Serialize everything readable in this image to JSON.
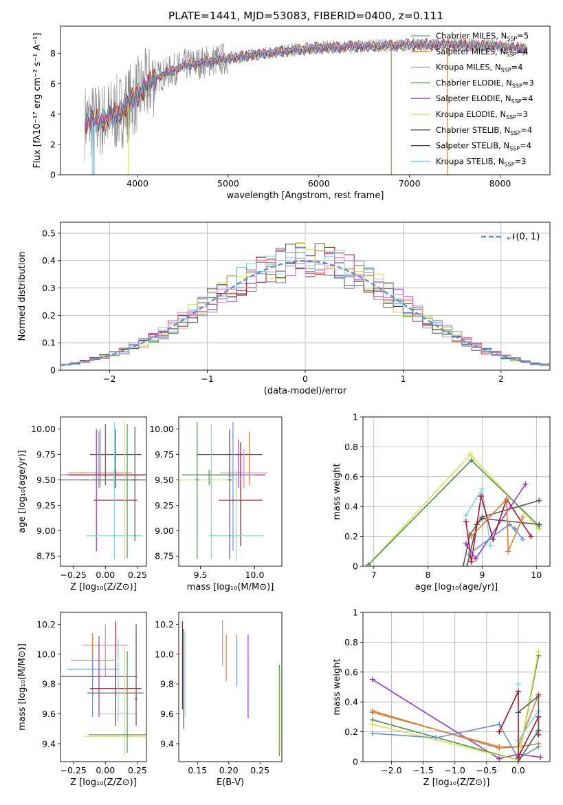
{
  "figure_title": "PLATE=1441, MJD=53083, FIBERID=0400, z=0.111",
  "colors": {
    "Chabrier MILES": "#6a8fd8",
    "Salpeter MILES": "#e8782a",
    "Kroupa MILES": "#c8883a",
    "Chabrier ELODIE": "#4f8f4f",
    "Salpeter ELODIE": "#9932cc",
    "Kroupa ELODIE": "#d4e84a",
    "Chabrier STELIB": "#555555",
    "Salpeter STELIB": "#b01020",
    "Kroupa STELIB": "#7fd8e0",
    "extra_pink": "#f080b0",
    "data": "#808080",
    "normal": "#5b8fd0"
  },
  "chart_data": [
    {
      "id": "spectrum",
      "type": "line",
      "title": "PLATE=1441, MJD=53083, FIBERID=0400, z=0.111",
      "xlabel": "wavelength [Angstrom, rest frame]",
      "ylabel": "Flux [fλ10⁻¹⁷ erg cm⁻² s⁻¹ A⁻¹]",
      "xlim": [
        3150,
        8550
      ],
      "ylim": [
        0,
        9.8
      ],
      "xticks": [
        4000,
        5000,
        6000,
        7000,
        8000
      ],
      "yticks": [
        0,
        2,
        4,
        6,
        8
      ],
      "legend": [
        {
          "name": "Chabrier MILES, N",
          "sub": "SSP",
          "tail": "=5",
          "color_key": "Chabrier MILES"
        },
        {
          "name": "Salpeter MILES, N",
          "sub": "SSP",
          "tail": "=4",
          "color_key": "Salpeter MILES"
        },
        {
          "name": "Kroupa MILES, N",
          "sub": "SSP",
          "tail": "=4",
          "color_key": "Kroupa MILES"
        },
        {
          "name": "Chabrier ELODIE, N",
          "sub": "SSP",
          "tail": "=3",
          "color_key": "Chabrier ELODIE"
        },
        {
          "name": "Salpeter ELODIE, N",
          "sub": "SSP",
          "tail": "=4",
          "color_key": "Salpeter ELODIE"
        },
        {
          "name": "Kroupa ELODIE, N",
          "sub": "SSP",
          "tail": "=3",
          "color_key": "Kroupa ELODIE"
        },
        {
          "name": "Chabrier STELIB, N",
          "sub": "SSP",
          "tail": "=4",
          "color_key": "Chabrier STELIB"
        },
        {
          "name": "Salpeter STELIB, N",
          "sub": "SSP",
          "tail": "=4",
          "color_key": "Salpeter STELIB"
        },
        {
          "name": "Kroupa STELIB, N",
          "sub": "SSP",
          "tail": "=3",
          "color_key": "Kroupa STELIB"
        }
      ],
      "legend_position": "upper-right",
      "continuum": {
        "x": [
          3420,
          3600,
          3800,
          4000,
          4200,
          4500,
          5000,
          5500,
          6000,
          6500,
          7000,
          7500,
          8000,
          8300
        ],
        "y": [
          3.5,
          3.6,
          4.1,
          5.3,
          6.4,
          7.2,
          7.7,
          8.1,
          8.4,
          8.5,
          8.6,
          8.6,
          8.5,
          8.3
        ]
      },
      "model_lower_cutoff": [
        3500,
        3520,
        3900,
        6800,
        7420
      ]
    },
    {
      "id": "residuals",
      "type": "step",
      "xlabel": "(data-model)/error",
      "ylabel": "Normed distribution",
      "xlim": [
        -2.5,
        2.5
      ],
      "ylim": [
        0,
        0.54
      ],
      "xticks": [
        -2,
        -1,
        0,
        1,
        2
      ],
      "yticks": [
        0,
        0.1,
        0.2,
        0.3,
        0.4,
        0.5
      ],
      "grid": true,
      "legend_label": "𝒩(0, 1)",
      "legend_position": "upper-right",
      "bin_width": 0.1
    },
    {
      "id": "age_vs_Z",
      "type": "errorbar",
      "xlabel": "Z [log₁₀(Z/Z⊙)]",
      "ylabel": "age  [log₁₀(age/yr)]",
      "xlim": [
        -0.35,
        0.32
      ],
      "ylim": [
        8.65,
        10.12
      ],
      "xticks": [
        -0.25,
        0,
        0.25
      ],
      "xticklabels": [
        "−0.25",
        "0.00",
        "0.25"
      ],
      "yticks": [
        8.75,
        9.0,
        9.25,
        9.5,
        9.75,
        10.0
      ],
      "yticklabels": [
        "8.75",
        "9.00",
        "9.25",
        "9.50",
        "9.75",
        "10.00"
      ],
      "points": [
        {
          "x": 0.08,
          "y": 9.75,
          "xerr": 0.2,
          "yerr": [
            9.52,
            10.0
          ],
          "c": "Chabrier STELIB"
        },
        {
          "x": -0.04,
          "y": 9.57,
          "xerr": 0.25,
          "yerr": [
            9.43,
            10.0
          ],
          "c": "Salpeter MILES"
        },
        {
          "x": -0.05,
          "y": 9.55,
          "xerr": 0.3,
          "yerr": [
            9.42,
            9.98
          ],
          "c": "Chabrier MILES"
        },
        {
          "x": 0.0,
          "y": 9.55,
          "xerr": 0.3,
          "yerr": [
            9.45,
            10.05
          ],
          "c": "Salpeter ELODIE"
        },
        {
          "x": 0.07,
          "y": 9.55,
          "xerr": 0.35,
          "yerr": [
            9.42,
            9.6
          ],
          "c": "Salpeter STELIB"
        },
        {
          "x": 0.08,
          "y": 9.3,
          "xerr": 0.17,
          "yerr": [
            9.42,
            9.6
          ],
          "c": "Salpeter STELIB"
        },
        {
          "x": 0.08,
          "y": 9.5,
          "xerr": 0.25,
          "yerr": [
            9.45,
            9.55
          ],
          "c": "Chabrier STELIB"
        },
        {
          "x": -0.07,
          "y": 9.5,
          "xerr": 0.28,
          "yerr": [
            8.8,
            10.0
          ],
          "c": "Salpeter ELODIE"
        },
        {
          "x": 0.15,
          "y": 9.5,
          "xerr": 0.28,
          "yerr": [
            8.72,
            10.07
          ],
          "c": "Kroupa ELODIE"
        },
        {
          "x": 0.17,
          "y": 9.5,
          "xerr": 0.28,
          "yerr": [
            8.73,
            10.05
          ],
          "c": "Chabrier ELODIE"
        },
        {
          "x": 0.07,
          "y": 8.95,
          "xerr": 0.22,
          "yerr": [
            8.72,
            10.07
          ],
          "c": "Kroupa STELIB"
        },
        {
          "x": 0.23,
          "y": 9.5,
          "xerr": 0.02,
          "yerr": [
            8.9,
            10.02
          ],
          "c": "Chabrier STELIB"
        }
      ]
    },
    {
      "id": "age_vs_mass",
      "type": "errorbar",
      "xlabel": "mass [log₁₀(M/M⊙)]",
      "ylabel": "",
      "xlim": [
        9.3,
        10.25
      ],
      "ylim": [
        8.65,
        10.12
      ],
      "xticks": [
        9.5,
        10.0
      ],
      "xticklabels": [
        "9.5",
        "10.0"
      ],
      "yticks": [
        8.75,
        9.0,
        9.25,
        9.5,
        9.75,
        10.0
      ],
      "yticklabels": [
        "8.75",
        "9.00",
        "9.25",
        "9.50",
        "9.75",
        "10.00"
      ],
      "points": [
        {
          "x": 9.77,
          "y": 9.75,
          "xerr": 0.3,
          "yerr": [
            9.52,
            9.98
          ],
          "c": "Chabrier STELIB"
        },
        {
          "x": 9.9,
          "y": 9.57,
          "xerr": 0.22,
          "yerr": [
            9.42,
            9.8
          ],
          "c": "extra_pink"
        },
        {
          "x": 9.95,
          "y": 9.55,
          "xerr": 0.12,
          "yerr": [
            9.45,
            9.97
          ],
          "c": "Salpeter MILES"
        },
        {
          "x": 9.85,
          "y": 9.55,
          "xerr": 0.25,
          "yerr": [
            9.42,
            9.9
          ],
          "c": "Salpeter ELODIE"
        },
        {
          "x": 9.8,
          "y": 9.55,
          "xerr": 0.2,
          "yerr": [
            8.8,
            10.07
          ],
          "c": "Chabrier MILES"
        },
        {
          "x": 9.87,
          "y": 9.3,
          "xerr": 0.2,
          "yerr": [
            8.85,
            9.87
          ],
          "c": "Salpeter STELIB"
        },
        {
          "x": 9.6,
          "y": 9.5,
          "xerr": 0.3,
          "yerr": [
            9.45,
            9.6
          ],
          "c": "Kroupa ELODIE"
        },
        {
          "x": 9.58,
          "y": 9.55,
          "xerr": 0.25,
          "yerr": [
            9.45,
            9.6
          ],
          "c": "Chabrier ELODIE"
        },
        {
          "x": 9.47,
          "y": 9.5,
          "xerr": 0.02,
          "yerr": [
            8.72,
            10.07
          ],
          "c": "Chabrier ELODIE"
        },
        {
          "x": 9.6,
          "y": 9.5,
          "xerr": 0.02,
          "yerr": [
            8.72,
            10.05
          ],
          "c": "Kroupa STELIB"
        },
        {
          "x": 9.83,
          "y": 8.95,
          "xerr": 0.25,
          "yerr": [
            8.7,
            9.6
          ],
          "c": "Kroupa STELIB"
        },
        {
          "x": 9.77,
          "y": 9.5,
          "xerr": 0.02,
          "yerr": [
            8.72,
            10.0
          ],
          "c": "Chabrier STELIB"
        }
      ]
    },
    {
      "id": "massweight_vs_age",
      "type": "line",
      "xlabel": "age  [log₁₀(age/yr)]",
      "ylabel": "mass weight",
      "xlim": [
        6.8,
        10.25
      ],
      "ylim": [
        0,
        1.0
      ],
      "xticks": [
        7,
        8,
        9,
        10
      ],
      "yticks": [
        0,
        0.2,
        0.4,
        0.6,
        0.8,
        1.0
      ],
      "grid": true,
      "series": [
        {
          "c": "Kroupa ELODIE",
          "x": [
            6.9,
            8.78,
            10.05
          ],
          "y": [
            0.01,
            0.75,
            0.25
          ]
        },
        {
          "c": "Chabrier ELODIE",
          "x": [
            6.9,
            8.8,
            10.05
          ],
          "y": [
            0.01,
            0.71,
            0.27
          ]
        },
        {
          "c": "Chabrier STELIB",
          "x": [
            8.65,
            8.77,
            9.0,
            10.05
          ],
          "y": [
            0.0,
            0.21,
            0.33,
            0.44
          ]
        },
        {
          "c": "Chabrier STELIB",
          "x": [
            8.72,
            8.9,
            9.0,
            10.05
          ],
          "y": [
            0.0,
            0.28,
            0.32,
            0.28
          ]
        },
        {
          "c": "Salpeter ELODIE",
          "x": [
            8.7,
            8.88,
            9.8
          ],
          "y": [
            0.15,
            0.05,
            0.55
          ]
        },
        {
          "c": "Kroupa STELIB",
          "x": [
            8.7,
            9.0,
            9.15
          ],
          "y": [
            0.34,
            0.52,
            0.14
          ]
        },
        {
          "c": "Salpeter STELIB",
          "x": [
            8.7,
            8.8,
            8.98,
            9.2,
            9.45,
            9.9
          ],
          "y": [
            0.3,
            0.03,
            0.47,
            0.18,
            0.45,
            0.2
          ]
        },
        {
          "c": "Chabrier MILES",
          "x": [
            8.75,
            9.5,
            9.6,
            9.75
          ],
          "y": [
            0.08,
            0.28,
            0.25,
            0.18
          ]
        },
        {
          "c": "Salpeter MILES",
          "x": [
            8.8,
            9.45,
            9.48,
            9.75
          ],
          "y": [
            0.2,
            0.45,
            0.1,
            0.33
          ]
        }
      ]
    },
    {
      "id": "mass_vs_Z",
      "type": "errorbar",
      "xlabel": "Z [log₁₀(Z/Z⊙)]",
      "ylabel": "mass [log₁₀(M/M⊙)]",
      "xlim": [
        -0.35,
        0.32
      ],
      "ylim": [
        9.28,
        10.28
      ],
      "xticks": [
        -0.25,
        0,
        0.25
      ],
      "xticklabels": [
        "−0.25",
        "0.00",
        "0.25"
      ],
      "yticks": [
        9.4,
        9.6,
        9.8,
        10.0,
        10.2
      ],
      "yticklabels": [
        "9.4",
        "9.6",
        "9.8",
        "10.0",
        "10.2"
      ],
      "points": [
        {
          "x": 0.0,
          "y": 10.06,
          "xerr": 0.18,
          "yerr": [
            9.85,
            10.2
          ],
          "c": "extra_pink"
        },
        {
          "x": -0.1,
          "y": 9.96,
          "xerr": 0.17,
          "yerr": [
            9.8,
            10.14
          ],
          "c": "Salpeter MILES"
        },
        {
          "x": -0.1,
          "y": 9.9,
          "xerr": 0.2,
          "yerr": [
            9.58,
            10.0
          ],
          "c": "Chabrier MILES"
        },
        {
          "x": -0.05,
          "y": 9.85,
          "xerr": 0.3,
          "yerr": [
            9.58,
            10.12
          ],
          "c": "Salpeter ELODIE"
        },
        {
          "x": 0.08,
          "y": 9.77,
          "xerr": 0.2,
          "yerr": [
            9.55,
            10.22
          ],
          "c": "Salpeter STELIB"
        },
        {
          "x": 0.08,
          "y": 9.74,
          "xerr": 0.22,
          "yerr": [
            9.52,
            9.98
          ],
          "c": "Chabrier STELIB"
        },
        {
          "x": 0.1,
          "y": 9.6,
          "xerr": 0.15,
          "yerr": [
            9.55,
            10.1
          ],
          "c": "Kroupa STELIB"
        },
        {
          "x": 0.15,
          "y": 9.45,
          "xerr": 0.32,
          "yerr": [
            9.32,
            10.05
          ],
          "c": "Kroupa ELODIE"
        },
        {
          "x": 0.17,
          "y": 9.46,
          "xerr": 0.3,
          "yerr": [
            9.34,
            10.02
          ],
          "c": "Chabrier ELODIE"
        },
        {
          "x": 0.24,
          "y": 9.7,
          "xerr": 0.01,
          "yerr": [
            9.52,
            10.2
          ],
          "c": "Chabrier STELIB"
        }
      ]
    },
    {
      "id": "mass_vs_ebv",
      "type": "errorbar",
      "xlabel": "E(B-V)",
      "ylabel": "",
      "xlim": [
        0.12,
        0.285
      ],
      "ylim": [
        9.28,
        10.28
      ],
      "xticks": [
        0.15,
        0.2,
        0.25
      ],
      "xticklabels": [
        "0.15",
        "0.20",
        "0.25"
      ],
      "yticks": [
        9.4,
        9.6,
        9.8,
        10.0,
        10.2
      ],
      "yticklabels": [
        "9.4",
        "9.6",
        "9.8",
        "10.0",
        "10.2"
      ],
      "points": [
        {
          "x": 0.126,
          "y": 9.9,
          "xerr": 0.0,
          "yerr": [
            9.63,
            10.22
          ],
          "c": "Salpeter STELIB"
        },
        {
          "x": 0.128,
          "y": 9.8,
          "xerr": 0.0,
          "yerr": [
            9.5,
            10.17
          ],
          "c": "Chabrier STELIB"
        },
        {
          "x": 0.13,
          "y": 9.9,
          "xerr": 0.0,
          "yerr": [
            9.58,
            10.15
          ],
          "c": "Kroupa STELIB"
        },
        {
          "x": 0.19,
          "y": 10.05,
          "xerr": 0.0,
          "yerr": [
            9.92,
            10.23
          ],
          "c": "extra_pink"
        },
        {
          "x": 0.196,
          "y": 10.0,
          "xerr": 0.0,
          "yerr": [
            9.82,
            10.13
          ],
          "c": "Salpeter MILES"
        },
        {
          "x": 0.213,
          "y": 9.95,
          "xerr": 0.0,
          "yerr": [
            9.78,
            10.13
          ],
          "c": "Chabrier MILES"
        },
        {
          "x": 0.231,
          "y": 9.85,
          "xerr": 0.0,
          "yerr": [
            9.57,
            10.13
          ],
          "c": "Salpeter ELODIE"
        },
        {
          "x": 0.281,
          "y": 9.6,
          "xerr": 0.0,
          "yerr": [
            9.32,
            9.93
          ],
          "c": "Chabrier ELODIE"
        },
        {
          "x": 0.282,
          "y": 9.6,
          "xerr": 0.0,
          "yerr": [
            9.34,
            9.9
          ],
          "c": "Kroupa ELODIE"
        }
      ]
    },
    {
      "id": "massweight_vs_Z",
      "type": "line",
      "xlabel": "Z [log₁₀(Z/Z⊙)]",
      "ylabel": "mass weight",
      "xlim": [
        -2.45,
        0.5
      ],
      "ylim": [
        0,
        1.0
      ],
      "xticks": [
        -2.0,
        -1.5,
        -1.0,
        -0.5,
        0.0
      ],
      "xticklabels": [
        "−2.0",
        "−1.5",
        "−1.0",
        "−0.5",
        "0.0"
      ],
      "yticks": [
        0,
        0.2,
        0.4,
        0.6,
        0.8,
        1.0
      ],
      "grid": true,
      "series": [
        {
          "c": "Salpeter ELODIE",
          "x": [
            -2.3,
            -0.3,
            0.0,
            0.35
          ],
          "y": [
            0.55,
            0.02,
            0.05,
            0.03
          ]
        },
        {
          "c": "Salpeter MILES",
          "x": [
            -2.3,
            -0.3,
            0.0,
            0.32
          ],
          "y": [
            0.34,
            0.09,
            0.1,
            0.45
          ]
        },
        {
          "c": "Kroupa MILES",
          "x": [
            -2.3,
            -0.3,
            0.0,
            0.32
          ],
          "y": [
            0.33,
            0.1,
            0.1,
            0.12
          ]
        },
        {
          "c": "Chabrier ELODIE",
          "x": [
            -2.3,
            0.0,
            0.32
          ],
          "y": [
            0.28,
            0.01,
            0.71
          ]
        },
        {
          "c": "Kroupa ELODIE",
          "x": [
            -2.3,
            0.0,
            0.32
          ],
          "y": [
            0.25,
            0.01,
            0.74
          ]
        },
        {
          "c": "Chabrier MILES",
          "x": [
            -2.3,
            -1.3,
            -0.3,
            0.0,
            0.32
          ],
          "y": [
            0.19,
            0.16,
            0.25,
            0.02,
            0.1
          ]
        },
        {
          "c": "Kroupa STELIB",
          "x": [
            0.0,
            0.0,
            0.32
          ],
          "y": [
            0.52,
            0.14,
            0.34
          ]
        },
        {
          "c": "Salpeter STELIB",
          "x": [
            -0.3,
            0.0,
            0.0,
            0.32,
            0.32
          ],
          "y": [
            0.2,
            0.47,
            0.03,
            0.3,
            0.18
          ]
        },
        {
          "c": "Chabrier STELIB",
          "x": [
            0.0,
            0.32,
            0.32,
            0.0
          ],
          "y": [
            0.33,
            0.44,
            0.21,
            0.0
          ]
        }
      ]
    }
  ]
}
